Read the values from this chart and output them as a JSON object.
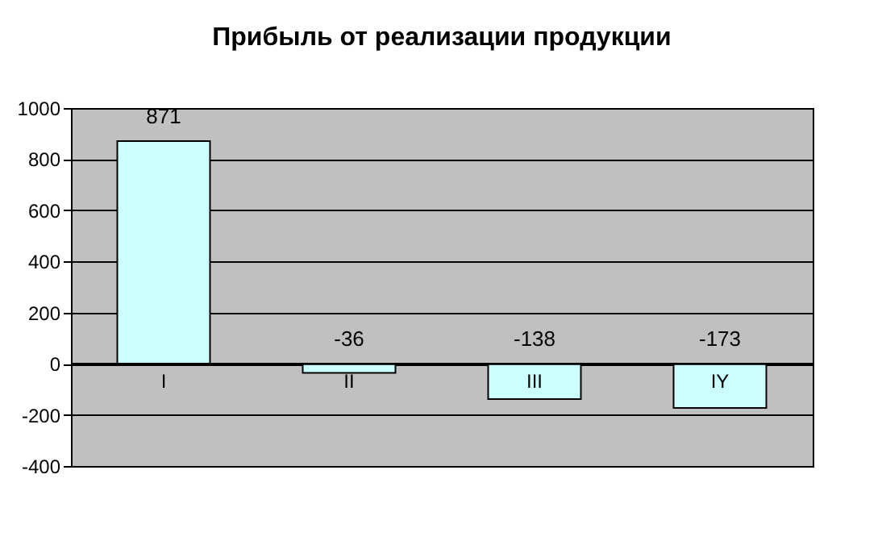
{
  "chart_data": {
    "type": "bar",
    "title": "Прибыль от реализации продукции",
    "categories": [
      "I",
      "II",
      "III",
      "IY"
    ],
    "values": [
      871,
      -36,
      -138,
      -173
    ],
    "color": "#ccffff",
    "ylim": [
      -400,
      1000
    ],
    "yticks": [
      -400,
      -200,
      0,
      200,
      400,
      600,
      800,
      1000
    ],
    "grid": "y",
    "data_labels": true
  }
}
